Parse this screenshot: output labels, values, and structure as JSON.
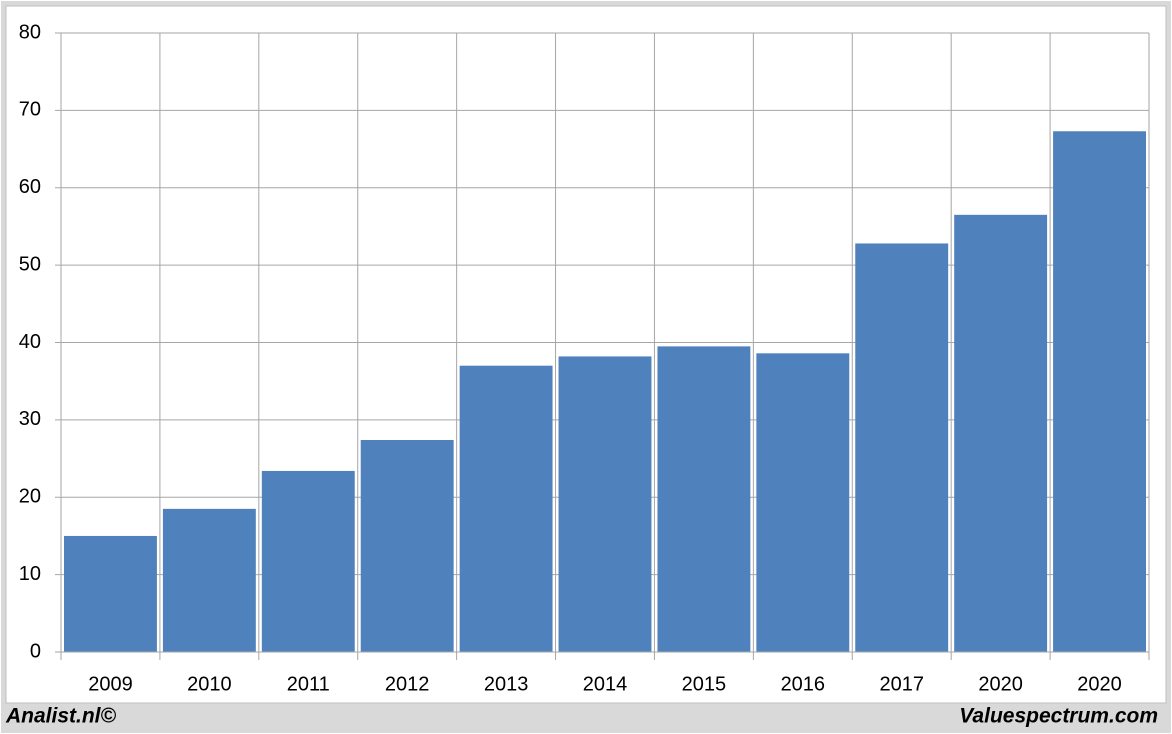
{
  "chart_data": {
    "type": "bar",
    "categories": [
      "2009",
      "2010",
      "2011",
      "2012",
      "2013",
      "2014",
      "2015",
      "2016",
      "2017",
      "2020",
      "2020"
    ],
    "values": [
      15.0,
      18.5,
      23.4,
      27.4,
      37.0,
      38.2,
      39.5,
      38.6,
      52.8,
      56.5,
      67.3
    ],
    "color": "#4f81bd",
    "ylim": [
      0,
      80
    ],
    "yticks": [
      0,
      10,
      20,
      30,
      40,
      50,
      60,
      70,
      80
    ],
    "grid": true,
    "source_left": "Analist.nl©",
    "source_right": "Valuespectrum.com"
  }
}
